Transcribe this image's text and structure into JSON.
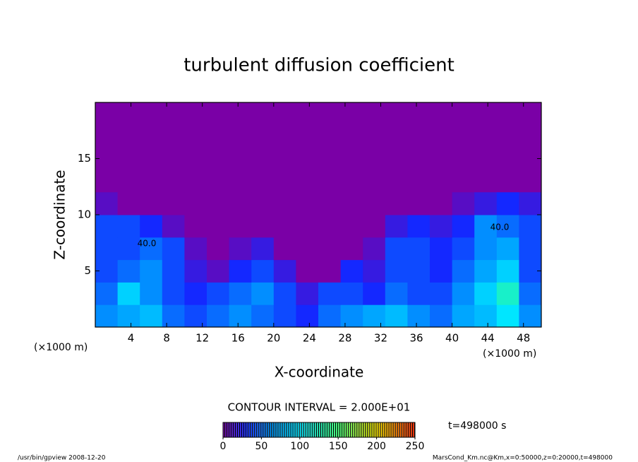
{
  "chart_data": {
    "type": "heatmap",
    "title": "turbulent diffusion coefficient",
    "x_label": "X-coordinate",
    "y_label": "Z-coordinate",
    "x_unit_label": "(×1000 m)",
    "xlim": [
      0,
      50
    ],
    "ylim": [
      0,
      20
    ],
    "xticks": [
      4,
      8,
      12,
      16,
      20,
      24,
      28,
      32,
      36,
      40,
      44,
      48
    ],
    "yticks": [
      5,
      10,
      15
    ],
    "x_bins": [
      0,
      2.5,
      5,
      7.5,
      10,
      12.5,
      15,
      17.5,
      20,
      22.5,
      25,
      27.5,
      30,
      32.5,
      35,
      37.5,
      40,
      42.5,
      45,
      47.5,
      50
    ],
    "z_bins": [
      0,
      2,
      4,
      6,
      8,
      10,
      12
    ],
    "values": [
      [
        60,
        70,
        80,
        50,
        40,
        50,
        60,
        50,
        40,
        30,
        50,
        60,
        70,
        80,
        60,
        50,
        70,
        80,
        100,
        60
      ],
      [
        50,
        90,
        60,
        40,
        30,
        40,
        50,
        60,
        40,
        20,
        40,
        40,
        30,
        50,
        40,
        40,
        60,
        90,
        120,
        50
      ],
      [
        40,
        50,
        60,
        40,
        20,
        10,
        30,
        40,
        20,
        0,
        0,
        30,
        20,
        40,
        40,
        30,
        50,
        70,
        90,
        40
      ],
      [
        40,
        40,
        50,
        40,
        10,
        0,
        10,
        20,
        0,
        0,
        0,
        0,
        10,
        40,
        40,
        30,
        40,
        60,
        70,
        40
      ],
      [
        40,
        40,
        30,
        10,
        0,
        0,
        0,
        0,
        0,
        0,
        0,
        0,
        0,
        20,
        30,
        20,
        30,
        60,
        50,
        40
      ],
      [
        10,
        0,
        0,
        0,
        0,
        0,
        0,
        0,
        0,
        0,
        0,
        0,
        0,
        0,
        0,
        0,
        10,
        20,
        30,
        20
      ]
    ],
    "contour_labels": [
      "40.0",
      "40.0"
    ],
    "contour_interval": "CONTOUR INTERVAL = 2.000E+01",
    "time_label": "t=498000 s",
    "colorbar_lim": [
      0,
      250
    ],
    "colorbar_ticks": [
      0,
      50,
      100,
      150,
      200,
      250
    ],
    "footer_left": "/usr/bin/gpview  2008-12-20",
    "footer_right": "MarsCond_Km.nc@Km,x=0:50000,z=0:20000,t=498000"
  }
}
